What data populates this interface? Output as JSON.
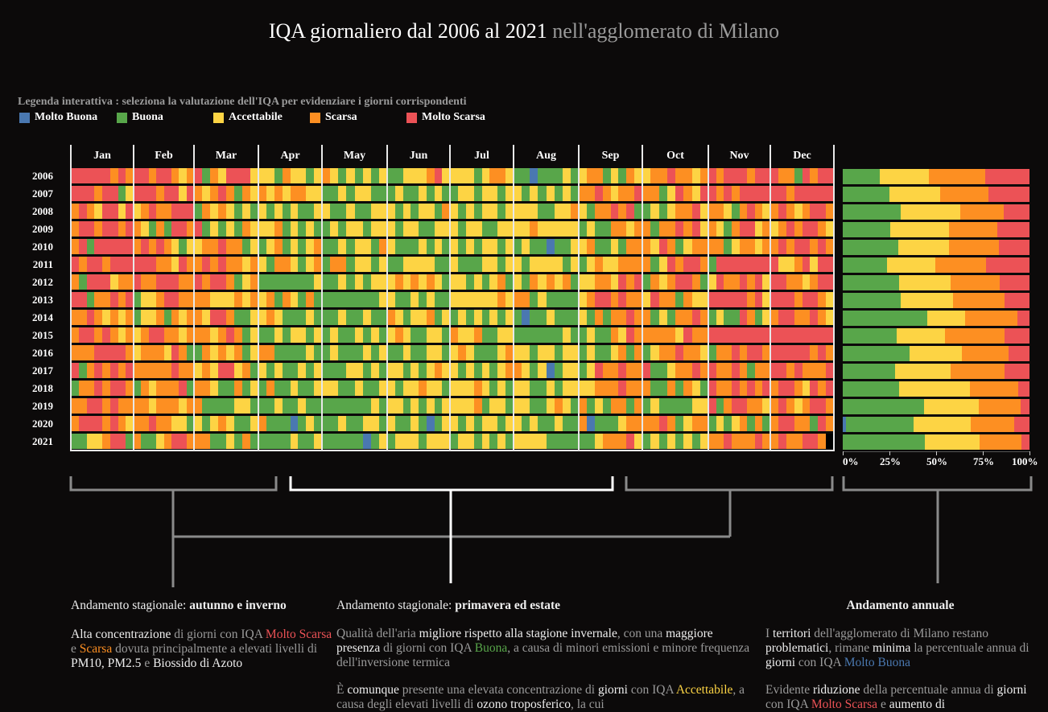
{
  "title": {
    "main": "IQA giornaliero dal 2006 al 2021",
    "sub": " nell'agglomerato di Milano"
  },
  "legend": {
    "caption": "Legenda interattiva : seleziona la valutazione dell'IQA per evidenziare i giorni corrispondenti",
    "items": [
      {
        "key": "B",
        "label": "Molto Buona",
        "color": "#4a78b0"
      },
      {
        "key": "G",
        "label": "Buona",
        "color": "#58a64a"
      },
      {
        "key": "A",
        "label": "Accettabile",
        "color": "#fdd444"
      },
      {
        "key": "S",
        "label": "Scarsa",
        "color": "#fd8f22"
      },
      {
        "key": "R",
        "label": "Molto Scarsa",
        "color": "#ec5256"
      }
    ]
  },
  "chart_data": [
    {
      "type": "heatmap",
      "title": "",
      "months": [
        "Jan",
        "Feb",
        "Mar",
        "Apr",
        "May",
        "Jun",
        "Jul",
        "Aug",
        "Sep",
        "Oct",
        "Nov",
        "Dec"
      ],
      "years": [
        "2006",
        "2007",
        "2008",
        "2009",
        "2010",
        "2011",
        "2012",
        "2013",
        "2014",
        "2015",
        "2016",
        "2017",
        "2018",
        "2019",
        "2020",
        "2021"
      ],
      "encoding": {
        "B": "Molto Buona",
        "G": "Buona",
        "A": "Accettabile",
        "S": "Scarsa",
        "R": "Molto Scarsa",
        "X": "n/d"
      },
      "daily_approx": [
        [
          "RRRRRSRS",
          "RRSRRSAS",
          "RGSARRRA",
          "AAGSAAGA",
          "SAGAGAGA",
          "GGAAASRA",
          "AAAGASSA",
          "GGBGGGAG",
          "ASSGAGSA",
          "ASSRSSAS",
          "RSRRRSRR",
          "RSSGRSRR"
        ],
        [
          "RRRSRRGA",
          "RRRSRRAR",
          "SASRSGSA",
          "SASASSAA",
          "GGAGAAGG",
          "GAGGAGAG",
          "GAAGAAGA",
          "AGAGAGAG",
          "SSRSASSR",
          "SSGARSAR",
          "RSRSRRRR",
          "RRSRRRRR"
        ],
        [
          "SRSARRAR",
          "ASRSSRRR",
          "GSASAGAG",
          "AGAGAGGA",
          "AGGAGGAA",
          "AGAGAAGS",
          "AGAGAAGA",
          "AAAGGAAS",
          "AGSSRSRG",
          "GAGASSRA",
          "SSAGSRSA",
          "SRSASRRS"
        ],
        [
          "SRRSRRSR",
          "SAGSGRRS",
          "RGAGAGSA",
          "AASGAGAG",
          "GAGAAGAA",
          "AGAAGGAA",
          "AGAAGGAA",
          "AASAAAAA",
          "GAGGSSAS",
          "SGSSRSRA",
          "SAGSRRAS",
          "ASRSRRSA"
        ],
        [
          "SRGRRRRR",
          "SRSRSAGA",
          "ASSRSSGA",
          "GASGAGAS",
          "GGAGAAGS",
          "AGGGAGAG",
          "AGAGAAGA",
          "GAGGBGGA",
          "ASGGAGSS",
          "SARSGASS",
          "SSGASSAS",
          "SRSRRSRS"
        ],
        [
          "RSRRSRRR",
          "RRRSSARS",
          "SRSRSSAS",
          "AGSSAGAS",
          "GSSGAAGA",
          "GGAAAAGG",
          "AGGGAAGA",
          "AGAAAAGA",
          "GASAASSS",
          "SGARSRRS",
          "GRRRRRRR",
          "RAASRARR"
        ],
        [
          "SGRRRASS",
          "RSSRRRSS",
          "RSRRSGAS",
          "GGGGGGGA",
          "GGAGAGAA",
          "ASASASAG",
          "AAGAGASG",
          "AGSASASG",
          "AASSARSR",
          "GSASRRSG",
          "ARSSRSRA",
          "RRSSASRR"
        ],
        [
          "RRGSSRSR",
          "GAASRRSS",
          "SSAAASAS",
          "ASGSAGSG",
          "GGGGGGGA",
          "AGGAGAGG",
          "AAAAAASA",
          "SSGAGGGG",
          "ASRRSRSS",
          "ARSSGSAA",
          "RRRRRSRA",
          "RRRSRRSA"
        ],
        [
          "SSRSASAS",
          "GAASGSAS",
          "SARRSGGA",
          "ASAGGGAG",
          "GGAGGAGG",
          "SAGAASGA",
          "GAGAGAGA",
          "GBGGAGGG",
          "AGSGSSRS",
          "SGAGSSRS",
          "GAGGRSGA",
          "SRRSSRSA"
        ],
        [
          "SRRSRSAS",
          "ASRRSSAS",
          "SSASRSGA",
          "GGAGAAGA",
          "GAGGAGAG",
          "ASAGGAAG",
          "SAASGGAA",
          "GGGGGGAG",
          "GAGGSARS",
          "SSSSARSS",
          "RRRRRRRR",
          "RRRRRRRR"
        ],
        [
          "SSSRRRRS",
          "ASSSARSG",
          "GSASASGA",
          "SSGGGGAG",
          "GAGGGAGA",
          "GGAGGAAG",
          "ASAGGGAS",
          "AAGAAGAA",
          "GAGGASGS",
          "GASSRSSA",
          "GSSRSRRS",
          "RRRRRSRS"
        ],
        [
          "RGSRSRSR",
          "SSSSSRSS",
          "ASARRASG",
          "AGAGGAGA",
          "GGGAAGAG",
          "AAGAGASA",
          "AGAGAGAS",
          "SAGABGAA",
          "GARSSRSS",
          "RGGASSRS",
          "RSSRSGSS",
          "RRSRSSSR"
        ],
        [
          "GSSRSRRS",
          "GSASSSRG",
          "SSAGGSGA",
          "GSGGAGGA",
          "AAGGAGGA",
          "AGAASAAG",
          "AAASAGAG",
          "AAGGAGAA",
          "AASSSRSS",
          "SGGSGSAG",
          "RSSRSRSR",
          "SRRSARSR"
        ],
        [
          "SSRRSRSS",
          "SSASSSAS",
          "SGGGGAAG",
          "GGAGGAGG",
          "GGGGGGAG",
          "AAGAGAGA",
          "AAASGAAG",
          "AAGGASAG",
          "SGAGSSGS",
          "GAGGGGAA",
          "RGSRRSSA",
          "SRSASRRS"
        ],
        [
          "SRRRSRSA",
          "SSRSSAAG",
          "AGASAGGA",
          "SGGGBGAG",
          "GGAGGAAG",
          "AGGAGBGA",
          "AGAGAAGA",
          "AGAGGAGG",
          "SBGGGASS",
          "SSRSGASS",
          "GAGASGSG",
          "SRRSSGRS"
        ],
        [
          "GGAASRRG",
          "SGGASRRS",
          "SSGGAGSG",
          "GGGGAGGA",
          "GGGGGBGA",
          "GAAAGAAA",
          "GAAGAGAG",
          "AAAAGGGG",
          "GGASSSRA",
          "GAGAGAGA",
          "SSRSSSRS",
          "SRSSRRSX"
        ]
      ]
    },
    {
      "type": "bar",
      "orientation": "horizontal-stacked",
      "categories": [
        "2006",
        "2007",
        "2008",
        "2009",
        "2010",
        "2011",
        "2012",
        "2013",
        "2014",
        "2015",
        "2016",
        "2017",
        "2018",
        "2019",
        "2020",
        "2021"
      ],
      "series_order": [
        "Molto Buona",
        "Buona",
        "Accettabile",
        "Scarsa",
        "Molto Scarsa"
      ],
      "values_percent": [
        [
          0,
          19.7,
          26.5,
          30.1,
          23.7
        ],
        [
          0,
          24.9,
          27.3,
          25.9,
          21.9
        ],
        [
          0,
          30.9,
          32.1,
          23.3,
          13.7
        ],
        [
          0,
          25.5,
          31.5,
          25.9,
          17.1
        ],
        [
          0,
          29.8,
          27.2,
          26.7,
          16.3
        ],
        [
          0,
          23.7,
          25.9,
          27.2,
          23.2
        ],
        [
          0,
          30.2,
          27.6,
          26.4,
          15.8
        ],
        [
          0,
          31.1,
          28.0,
          27.4,
          13.5
        ],
        [
          0,
          45.3,
          20.3,
          28.1,
          6.3
        ],
        [
          0,
          28.8,
          26.0,
          31.7,
          13.5
        ],
        [
          0,
          35.8,
          28.1,
          25.0,
          11.1
        ],
        [
          0,
          27.9,
          29.9,
          29.0,
          13.2
        ],
        [
          0,
          30.2,
          38.0,
          25.9,
          5.9
        ],
        [
          0,
          43.6,
          29.3,
          22.5,
          4.6
        ],
        [
          1.7,
          36.3,
          30.6,
          23.3,
          8.1
        ],
        [
          0,
          44.0,
          29.4,
          22.4,
          4.2
        ]
      ],
      "xlim": [
        0,
        100
      ],
      "tick_labels": [
        "0%",
        "25%",
        "50%",
        "75%",
        "100%"
      ]
    }
  ],
  "annotations": {
    "col1": {
      "heading_plain": "Andamento stagionale: ",
      "heading_bold": "autunno e inverno",
      "p1": [
        {
          "t": "Alta concentrazione",
          "s": "b"
        },
        {
          "t": " di giorni con IQA ",
          "s": ""
        },
        {
          "t": "Molto Scarsa",
          "s": "R"
        },
        {
          "t": " e ",
          "s": ""
        },
        {
          "t": "Scarsa",
          "s": "S"
        },
        {
          "t": " dovuta principalmente a elevati livelli di ",
          "s": ""
        },
        {
          "t": "PM10, PM2.5",
          "s": "b"
        },
        {
          "t": " e ",
          "s": ""
        },
        {
          "t": "Biossido di Azoto",
          "s": "b"
        }
      ]
    },
    "col2": {
      "heading_plain": "Andamento stagionale: ",
      "heading_bold": "primavera ed estate",
      "p1": [
        {
          "t": "Qualità dell'aria ",
          "s": ""
        },
        {
          "t": "migliore rispetto alla stagione invernale",
          "s": "b"
        },
        {
          "t": ", con una ",
          "s": ""
        },
        {
          "t": "maggiore presenza",
          "s": "b"
        },
        {
          "t": " di giorni con IQA ",
          "s": ""
        },
        {
          "t": "Buona",
          "s": "G"
        },
        {
          "t": ", a causa di minori emissioni e minore frequenza dell'inversione termica",
          "s": ""
        }
      ],
      "p2": [
        {
          "t": "È ",
          "s": ""
        },
        {
          "t": "comunque",
          "s": "b"
        },
        {
          "t": " presente una elevata concentrazione di ",
          "s": ""
        },
        {
          "t": "giorni",
          "s": "b"
        },
        {
          "t": " con IQA ",
          "s": ""
        },
        {
          "t": "Accettabile",
          "s": "A"
        },
        {
          "t": ", a causa degli elevati livelli di ",
          "s": ""
        },
        {
          "t": "ozono troposferico",
          "s": "b"
        },
        {
          "t": ", la cui",
          "s": ""
        }
      ]
    },
    "col3": {
      "heading_bold": "Andamento annuale",
      "p1": [
        {
          "t": "I ",
          "s": ""
        },
        {
          "t": "territori",
          "s": "b"
        },
        {
          "t": " dell'agglomerato di Milano restano ",
          "s": ""
        },
        {
          "t": "problematici",
          "s": "b"
        },
        {
          "t": ", rimane ",
          "s": ""
        },
        {
          "t": "minima",
          "s": "b"
        },
        {
          "t": " la percentuale annua di ",
          "s": ""
        },
        {
          "t": "giorni",
          "s": "b"
        },
        {
          "t": " con IQA ",
          "s": ""
        },
        {
          "t": "Molto Buona",
          "s": "B"
        }
      ],
      "p2": [
        {
          "t": "Evidente ",
          "s": ""
        },
        {
          "t": "riduzione",
          "s": "b"
        },
        {
          "t": " della percentuale annua di ",
          "s": ""
        },
        {
          "t": "giorni",
          "s": "b"
        },
        {
          "t": " con IQA ",
          "s": ""
        },
        {
          "t": "Molto Scarsa",
          "s": "R"
        },
        {
          "t": " e ",
          "s": ""
        },
        {
          "t": "aumento di",
          "s": "b"
        }
      ]
    }
  }
}
